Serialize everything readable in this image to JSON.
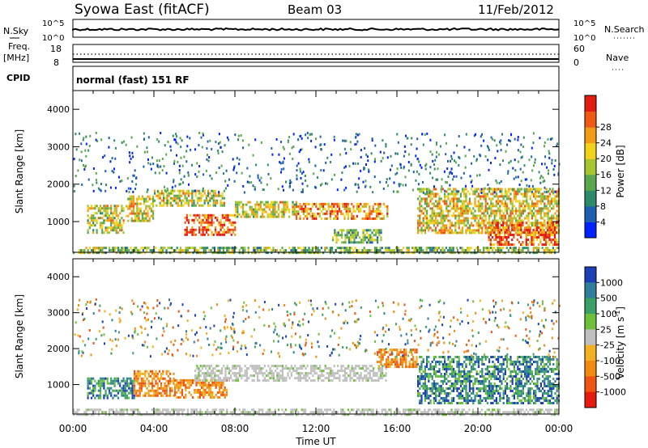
{
  "header": {
    "station": "Syowa East (fitACF)",
    "beam": "Beam 03",
    "date": "11/Feb/2012"
  },
  "panels": {
    "nsky": {
      "label": "N.Sky",
      "right_label": "N.Search",
      "left_ticks": [
        "10^5",
        "10^0"
      ],
      "right_ticks": [
        "10^5",
        "10^0"
      ]
    },
    "freq": {
      "label_line1": "Freq.",
      "label_line2": "[MHz]",
      "right_label": "Nave",
      "left_ticks": [
        "18",
        "8"
      ],
      "right_ticks": [
        "60",
        "0"
      ]
    },
    "cpid": {
      "label": "CPID",
      "value": "normal (fast) 151 RF"
    }
  },
  "chart_data": [
    {
      "type": "heatmap",
      "name": "power",
      "ylabel": "Slant Range [km]",
      "xlabel": "Time UT",
      "x_ticks": [
        "00:00",
        "04:00",
        "08:00",
        "12:00",
        "16:00",
        "20:00",
        "00:00"
      ],
      "x_range_hours": [
        0,
        24
      ],
      "y_ticks": [
        1000,
        2000,
        3000,
        4000
      ],
      "ylim": [
        180,
        4500
      ],
      "colorbar": {
        "label": "Power [dB]",
        "ticks": [
          "4",
          "8",
          "12",
          "16",
          "20",
          "24",
          "28"
        ],
        "colors": [
          "#0022ff",
          "#1f5fb0",
          "#2e8a6b",
          "#59a84d",
          "#a6c530",
          "#f2d31c",
          "#f39a16",
          "#ee5a14",
          "#e31c12"
        ]
      },
      "echo_regions": [
        {
          "t_start": 0.7,
          "t_end": 2.5,
          "r_low": 700,
          "r_high": 1450,
          "level": 0.55
        },
        {
          "t_start": 2.6,
          "t_end": 4.0,
          "r_low": 1000,
          "r_high": 1700,
          "level": 0.6
        },
        {
          "t_start": 4.0,
          "t_end": 7.5,
          "r_low": 1400,
          "r_high": 1850,
          "level": 0.55
        },
        {
          "t_start": 5.5,
          "t_end": 8.0,
          "r_low": 650,
          "r_high": 1200,
          "level": 0.85
        },
        {
          "t_start": 8.0,
          "t_end": 11.0,
          "r_low": 1100,
          "r_high": 1550,
          "level": 0.55
        },
        {
          "t_start": 11.0,
          "t_end": 15.5,
          "r_low": 1050,
          "r_high": 1500,
          "level": 0.7
        },
        {
          "t_start": 12.8,
          "t_end": 15.2,
          "r_low": 450,
          "r_high": 800,
          "level": 0.4
        },
        {
          "t_start": 17.0,
          "t_end": 24.0,
          "r_low": 700,
          "r_high": 1900,
          "level": 0.6
        },
        {
          "t_start": 20.5,
          "t_end": 24.0,
          "r_low": 400,
          "r_high": 1000,
          "level": 0.85
        },
        {
          "t_start": 0.0,
          "t_end": 24.0,
          "r_low": 180,
          "r_high": 330,
          "level": 0.45
        }
      ]
    },
    {
      "type": "heatmap",
      "name": "velocity",
      "ylabel": "Slant Range [km]",
      "xlabel": "Time UT",
      "x_ticks": [
        "00:00",
        "04:00",
        "08:00",
        "12:00",
        "16:00",
        "20:00",
        "00:00"
      ],
      "x_range_hours": [
        0,
        24
      ],
      "y_ticks": [
        1000,
        2000,
        3000,
        4000
      ],
      "ylim": [
        180,
        4500
      ],
      "colorbar": {
        "label": "Velocity [m s-1]",
        "ticks": [
          "1000",
          "500",
          "100",
          "25",
          "-25",
          "-100",
          "-500",
          "-1000"
        ],
        "colors": [
          "#1d3fb5",
          "#2f7f9a",
          "#3aa066",
          "#6dc13a",
          "#c0c0c0",
          "#f3b020",
          "#f08a10",
          "#ef5512",
          "#e51b10"
        ]
      },
      "echo_regions": [
        {
          "t_start": 0.7,
          "t_end": 3.0,
          "r_low": 600,
          "r_high": 1200,
          "class": "positive"
        },
        {
          "t_start": 3.0,
          "t_end": 5.0,
          "r_low": 700,
          "r_high": 1400,
          "class": "negative"
        },
        {
          "t_start": 5.0,
          "t_end": 7.6,
          "r_low": 650,
          "r_high": 1150,
          "class": "negative"
        },
        {
          "t_start": 6.0,
          "t_end": 15.5,
          "r_low": 1100,
          "r_high": 1550,
          "class": "ground"
        },
        {
          "t_start": 15.0,
          "t_end": 17.0,
          "r_low": 1500,
          "r_high": 2000,
          "class": "negative"
        },
        {
          "t_start": 17.0,
          "t_end": 24.0,
          "r_low": 500,
          "r_high": 1800,
          "class": "positive"
        },
        {
          "t_start": 0.0,
          "t_end": 24.0,
          "r_low": 180,
          "r_high": 330,
          "class": "ground"
        }
      ]
    }
  ]
}
